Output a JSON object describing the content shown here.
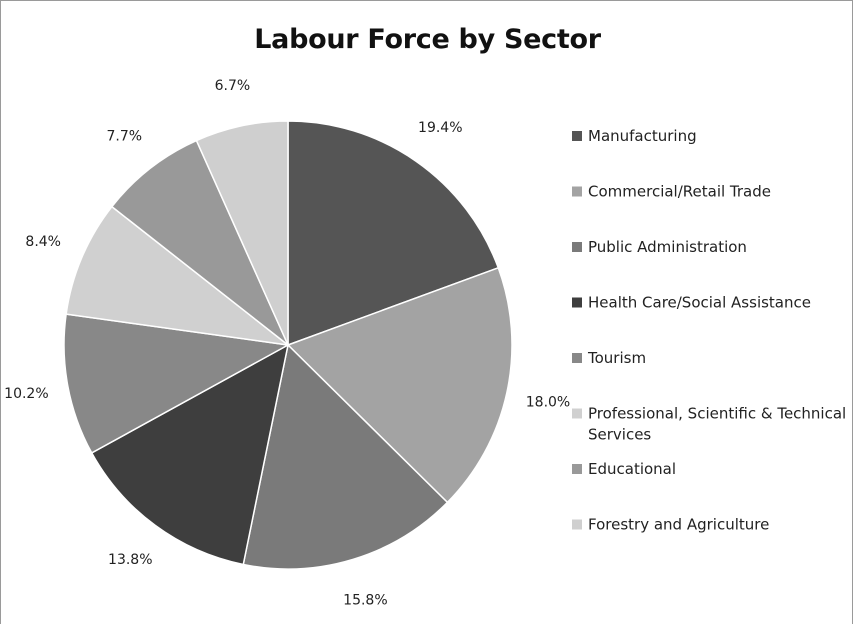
{
  "chart_data": {
    "type": "pie",
    "title": "Labour Force by Sector",
    "legend_position": "right",
    "slices": [
      {
        "name": "Manufacturing",
        "value": 19.4,
        "label": "19.4%",
        "color": "#555555"
      },
      {
        "name": "Commercial/Retail Trade",
        "value": 18.0,
        "label": "18.0%",
        "color": "#a3a3a3"
      },
      {
        "name": "Public Administration",
        "value": 15.8,
        "label": "15.8%",
        "color": "#7a7a7a"
      },
      {
        "name": "Health Care/Social Assistance",
        "value": 13.8,
        "label": "13.8%",
        "color": "#3e3e3e"
      },
      {
        "name": "Tourism",
        "value": 10.2,
        "label": "10.2%",
        "color": "#888888"
      },
      {
        "name": "Professional, Scientific & Technical Services",
        "value": 8.4,
        "label": "8.4%",
        "color": "#d0d0d0"
      },
      {
        "name": "Educational",
        "value": 7.7,
        "label": "7.7%",
        "color": "#999999"
      },
      {
        "name": "Forestry and Agriculture",
        "value": 6.7,
        "label": "6.7%",
        "color": "#cfcfcf"
      }
    ]
  }
}
